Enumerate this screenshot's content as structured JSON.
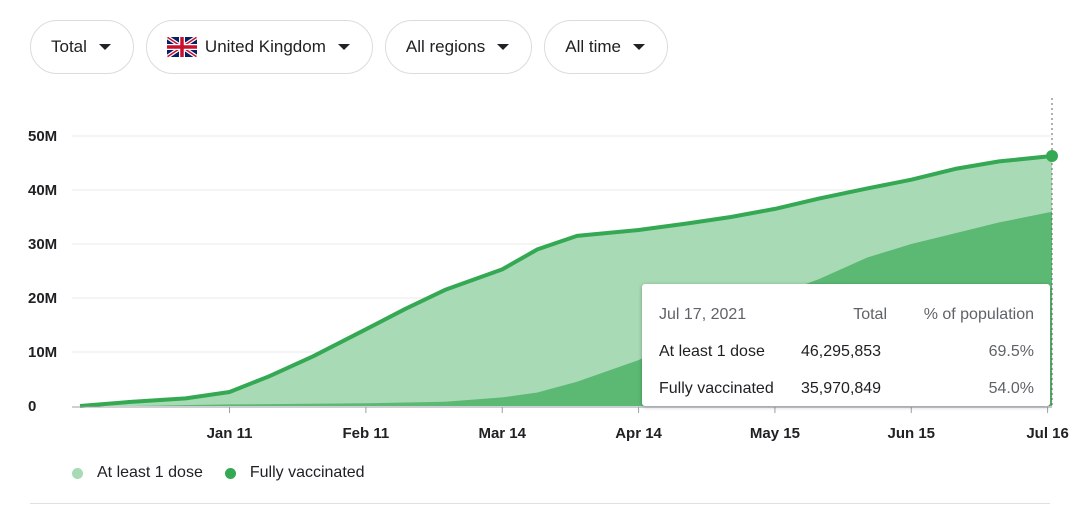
{
  "filters": {
    "metric": "Total",
    "country": "United Kingdom",
    "region": "All regions",
    "time": "All time"
  },
  "colors": {
    "at_least_one": "#a8dab5",
    "fully": "#5bb974",
    "line": "#34a853",
    "grid": "#e8eaed",
    "axis": "#9aa0a6"
  },
  "tooltip": {
    "date": "Jul 17, 2021",
    "col_total": "Total",
    "col_pct": "% of population",
    "rows": [
      {
        "label": "At least 1 dose",
        "total": "46,295,853",
        "pct": "69.5%"
      },
      {
        "label": "Fully vaccinated",
        "total": "35,970,849",
        "pct": "54.0%"
      }
    ]
  },
  "chart_data": {
    "type": "area",
    "y_ticks": [
      "0",
      "10M",
      "20M",
      "30M",
      "40M",
      "50M"
    ],
    "ylim": [
      0,
      50000000
    ],
    "x_ticks": [
      "Jan 11",
      "Feb 11",
      "Mar 14",
      "Apr 14",
      "May 15",
      "Jun 15",
      "Jul 16"
    ],
    "xlim": [
      "2020-12-08",
      "2021-07-17"
    ],
    "grid": true,
    "legend_position": "bottom-left",
    "series": [
      {
        "name": "At least 1 dose",
        "x": [
          "2020-12-08",
          "2020-12-20",
          "2021-01-01",
          "2021-01-11",
          "2021-01-20",
          "2021-01-30",
          "2021-02-11",
          "2021-02-20",
          "2021-03-01",
          "2021-03-14",
          "2021-03-22",
          "2021-03-31",
          "2021-04-14",
          "2021-04-25",
          "2021-05-05",
          "2021-05-15",
          "2021-05-25",
          "2021-06-05",
          "2021-06-15",
          "2021-06-25",
          "2021-07-05",
          "2021-07-17"
        ],
        "values": [
          0,
          800000,
          1400000,
          2600000,
          5500000,
          9200000,
          14200000,
          18000000,
          21500000,
          25300000,
          29000000,
          31500000,
          32600000,
          33800000,
          35000000,
          36500000,
          38400000,
          40300000,
          41900000,
          43900000,
          45300000,
          46295853
        ]
      },
      {
        "name": "Fully vaccinated",
        "x": [
          "2020-12-08",
          "2020-12-20",
          "2021-01-11",
          "2021-02-11",
          "2021-03-01",
          "2021-03-14",
          "2021-03-22",
          "2021-03-31",
          "2021-04-14",
          "2021-04-25",
          "2021-05-05",
          "2021-05-15",
          "2021-05-25",
          "2021-06-05",
          "2021-06-15",
          "2021-06-25",
          "2021-07-05",
          "2021-07-17"
        ],
        "values": [
          0,
          0,
          300000,
          500000,
          800000,
          1600000,
          2500000,
          4500000,
          8500000,
          13000000,
          17500000,
          20500000,
          23500000,
          27500000,
          30000000,
          32000000,
          34000000,
          35970849
        ]
      }
    ]
  }
}
